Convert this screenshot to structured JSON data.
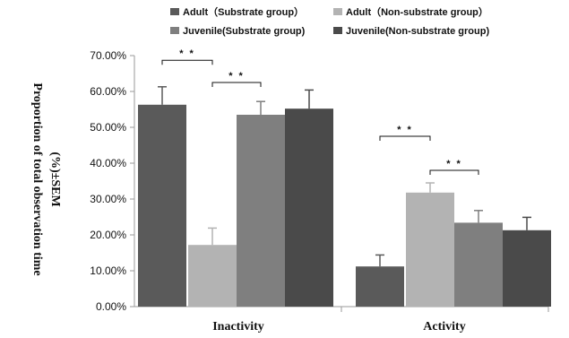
{
  "chart_data": {
    "type": "bar",
    "categories": [
      "Inactivity",
      "Activity"
    ],
    "ylabel_line1": "Proportion of total observation time",
    "ylabel_line2": "(%)±SEM",
    "yticks": [
      "0.00%",
      "10.00%",
      "20.00%",
      "30.00%",
      "40.00%",
      "50.00%",
      "60.00%",
      "70.00%"
    ],
    "ylim": [
      0,
      70
    ],
    "series": [
      {
        "name": "Adult（Substrate  group）",
        "color": "#5a5a5a",
        "values": [
          56.3,
          11.2
        ],
        "errors": [
          5.0,
          3.2
        ]
      },
      {
        "name": "Adult（Non-substrate  group）",
        "color": "#b3b3b3",
        "values": [
          17.2,
          31.8
        ],
        "errors": [
          4.7,
          2.7
        ]
      },
      {
        "name": "Juvenile(Substrate group)",
        "color": "#7f7f7f",
        "values": [
          53.5,
          23.4
        ],
        "errors": [
          3.7,
          3.4
        ]
      },
      {
        "name": "Juvenile(Non-substrate group)",
        "color": "#4a4a4a",
        "values": [
          55.2,
          21.3
        ],
        "errors": [
          5.2,
          3.6
        ]
      }
    ],
    "significance": [
      {
        "label": "* *",
        "category": 0,
        "from_series": 0,
        "to_series": 1,
        "y": 68.7
      },
      {
        "label": "* *",
        "category": 0,
        "from_series": 1,
        "to_series": 2,
        "y": 62.5
      },
      {
        "label": "* *",
        "category": 1,
        "from_series": 0,
        "to_series": 1,
        "y": 47.5
      },
      {
        "label": "* *",
        "category": 1,
        "from_series": 1,
        "to_series": 2,
        "y": 38.0
      }
    ]
  }
}
